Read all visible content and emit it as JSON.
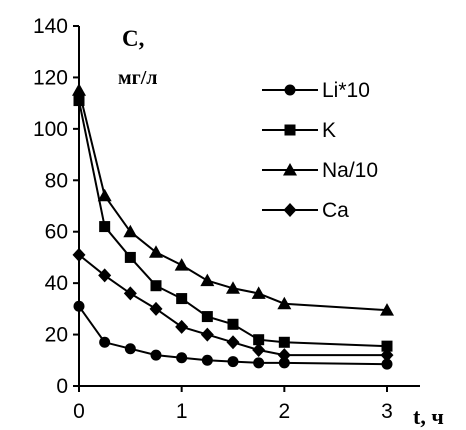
{
  "chart_data": {
    "type": "line",
    "title": "",
    "ylabel_line1": "C,",
    "ylabel_line2": "мг/л",
    "xlabel": "t, ч",
    "xlim": [
      0,
      3
    ],
    "ylim": [
      0,
      140
    ],
    "xticks": [
      0,
      1,
      2,
      3
    ],
    "yticks": [
      0,
      20,
      40,
      60,
      80,
      100,
      120,
      140
    ],
    "grid": false,
    "legend_position": "top-right",
    "x": [
      0,
      0.25,
      0.5,
      0.75,
      1,
      1.25,
      1.5,
      1.75,
      2,
      3
    ],
    "series": [
      {
        "name": "Li*10",
        "marker": "circle",
        "values": [
          31,
          17,
          14.5,
          12,
          11,
          10,
          9.5,
          9,
          9,
          8.5
        ]
      },
      {
        "name": "K",
        "marker": "square",
        "values": [
          111,
          62,
          50,
          39,
          34,
          27,
          24,
          18,
          17,
          15.5
        ]
      },
      {
        "name": "Na/10",
        "marker": "triangle",
        "values": [
          115,
          74,
          60,
          52,
          47,
          41,
          38,
          36,
          32,
          29.5
        ]
      },
      {
        "name": "Ca",
        "marker": "diamond",
        "values": [
          51,
          43,
          36,
          30,
          23,
          20,
          17,
          14,
          12,
          12
        ]
      }
    ]
  }
}
